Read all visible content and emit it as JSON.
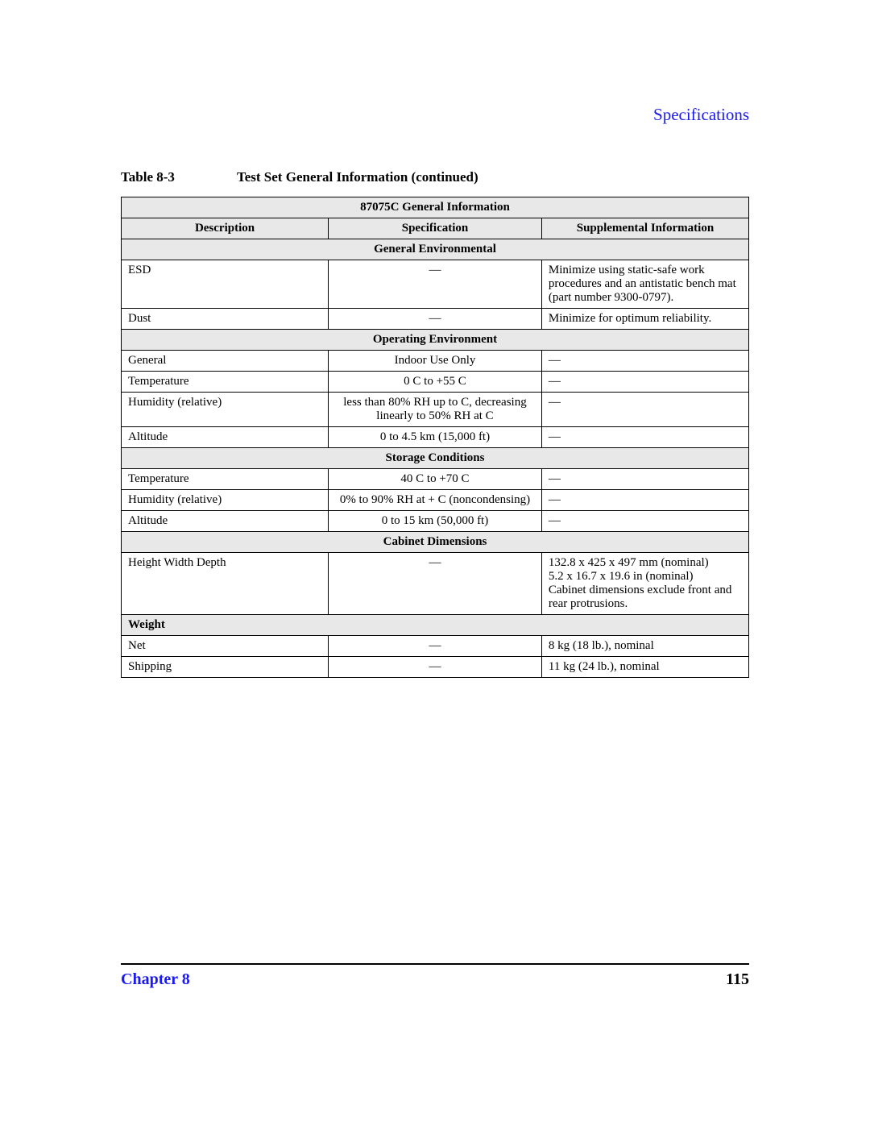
{
  "colors": {
    "link_blue": "#1a1af0",
    "page_bg": "#ffffff",
    "header_bg": "#e8e8e8",
    "text": "#000000",
    "rule": "#000000"
  },
  "section_header": "Specifications",
  "caption": {
    "number": "Table 8-3",
    "title": "Test Set General Information (continued)"
  },
  "table": {
    "title": "87075C General Information",
    "columns": [
      "Description",
      "Specification",
      "Supplemental Information"
    ],
    "column_widths_pct": [
      33,
      34,
      33
    ],
    "font_size_pt": 11,
    "sections": [
      {
        "name": "General Environmental",
        "align": "center",
        "rows": [
          {
            "desc": "ESD",
            "spec": "—",
            "supp": "Minimize using static-safe work procedures and an antistatic bench mat (part number 9300-0797)."
          },
          {
            "desc": "Dust",
            "spec": "—",
            "supp": "Minimize for optimum reliability."
          }
        ]
      },
      {
        "name": "Operating Environment",
        "align": "center",
        "rows": [
          {
            "desc": "General",
            "spec": "Indoor Use Only",
            "supp": "—"
          },
          {
            "desc": "Temperature",
            "spec": "0  C to +55  C",
            "supp": "—"
          },
          {
            "desc": "Humidity (relative)",
            "spec": "less than 80% RH up to       C, decreasing linearly to 50% RH at       C",
            "supp": "—"
          },
          {
            "desc": "Altitude",
            "spec": "0 to 4.5 km (15,000 ft)",
            "supp": "—"
          }
        ]
      },
      {
        "name": "Storage Conditions",
        "align": "center",
        "rows": [
          {
            "desc": "Temperature",
            "spec": "40  C to +70  C",
            "supp": "—"
          },
          {
            "desc": "Humidity (relative)",
            "spec": "0% to 90% RH at +      C (noncondensing)",
            "supp": "—"
          },
          {
            "desc": "Altitude",
            "spec": "0 to 15 km (50,000 ft)",
            "supp": "—"
          }
        ]
      },
      {
        "name": "Cabinet Dimensions",
        "align": "center",
        "rows": [
          {
            "desc": "Height   Width   Depth",
            "spec": "—",
            "supp": "132.8 x 425 x 497 mm (nominal)\n5.2 x 16.7 x 19.6 in (nominal)\nCabinet dimensions exclude front and rear protrusions."
          }
        ]
      },
      {
        "name": "Weight",
        "align": "left",
        "rows": [
          {
            "desc": "Net",
            "spec": "—",
            "supp": "8 kg (18 lb.), nominal"
          },
          {
            "desc": "Shipping",
            "spec": "—",
            "supp": "11 kg (24 lb.), nominal"
          }
        ]
      }
    ]
  },
  "footer": {
    "chapter": "Chapter 8",
    "page": "115"
  }
}
